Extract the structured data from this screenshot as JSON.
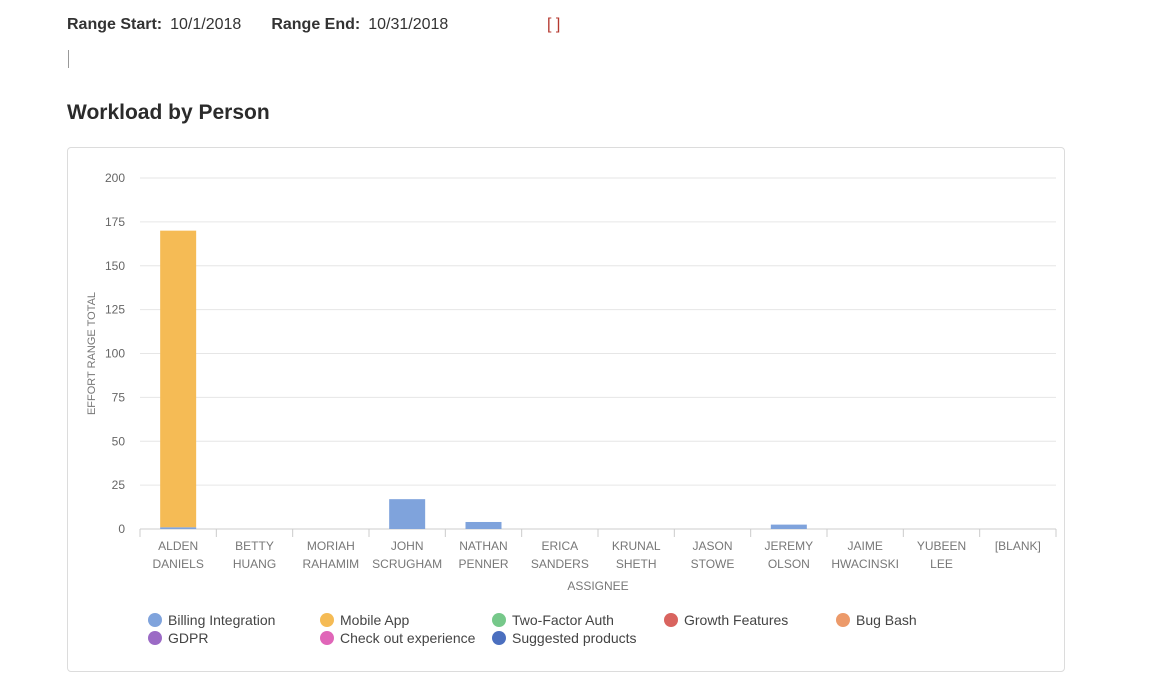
{
  "range": {
    "start_label": "Range Start:",
    "start_value": "10/1/2018",
    "end_label": "Range End:",
    "end_value": "10/31/2018",
    "brackets": "[ ]"
  },
  "chart_data": {
    "type": "bar",
    "stacked": true,
    "title": "Workload by Person",
    "xlabel": "ASSIGNEE",
    "ylabel": "EFFORT RANGE TOTAL",
    "ylim": [
      0,
      200
    ],
    "yticks": [
      0,
      25,
      50,
      75,
      100,
      125,
      150,
      175,
      200
    ],
    "grid": true,
    "legend_position": "bottom",
    "categories": [
      [
        "ALDEN",
        "DANIELS"
      ],
      [
        "BETTY",
        "HUANG"
      ],
      [
        "MORIAH",
        "RAHAMIM"
      ],
      [
        "JOHN",
        "SCRUGHAM"
      ],
      [
        "NATHAN",
        "PENNER"
      ],
      [
        "ERICA",
        "SANDERS"
      ],
      [
        "KRUNAL",
        "SHETH"
      ],
      [
        "JASON",
        "STOWE"
      ],
      [
        "JEREMY",
        "OLSON"
      ],
      [
        "JAIME",
        "HWACINSKI"
      ],
      [
        "YUBEEN",
        "LEE"
      ],
      [
        "[BLANK]"
      ]
    ],
    "series": [
      {
        "name": "Billing Integration",
        "color": "#7fa3dc",
        "values": [
          1,
          0,
          0,
          17,
          4,
          0,
          0,
          0,
          2.5,
          0,
          0,
          0
        ]
      },
      {
        "name": "Mobile App",
        "color": "#f5bb55",
        "values": [
          169,
          0,
          0,
          0,
          0,
          0,
          0,
          0,
          0,
          0,
          0,
          0
        ]
      },
      {
        "name": "Two-Factor Auth",
        "color": "#76c88a",
        "values": [
          0,
          0,
          0,
          0,
          0,
          0,
          0,
          0,
          0,
          0,
          0,
          0
        ]
      },
      {
        "name": "Growth Features",
        "color": "#d9645f",
        "values": [
          0,
          0,
          0,
          0,
          0,
          0,
          0,
          0,
          0,
          0,
          0,
          0
        ]
      },
      {
        "name": "Bug Bash",
        "color": "#ec9a6a",
        "values": [
          0,
          0,
          0,
          0,
          0,
          0,
          0,
          0,
          0,
          0,
          0,
          0
        ]
      },
      {
        "name": "GDPR",
        "color": "#9b6ac5",
        "values": [
          0,
          0,
          0,
          0,
          0,
          0,
          0,
          0,
          0,
          0,
          0,
          0
        ]
      },
      {
        "name": "Check out experience",
        "color": "#e066b8",
        "values": [
          0,
          0,
          0,
          0,
          0,
          0,
          0,
          0,
          0,
          0,
          0,
          0
        ]
      },
      {
        "name": "Suggested products",
        "color": "#4b6fbf",
        "values": [
          0,
          0,
          0,
          0,
          0,
          0,
          0,
          0,
          0,
          0,
          0,
          0
        ]
      }
    ]
  }
}
